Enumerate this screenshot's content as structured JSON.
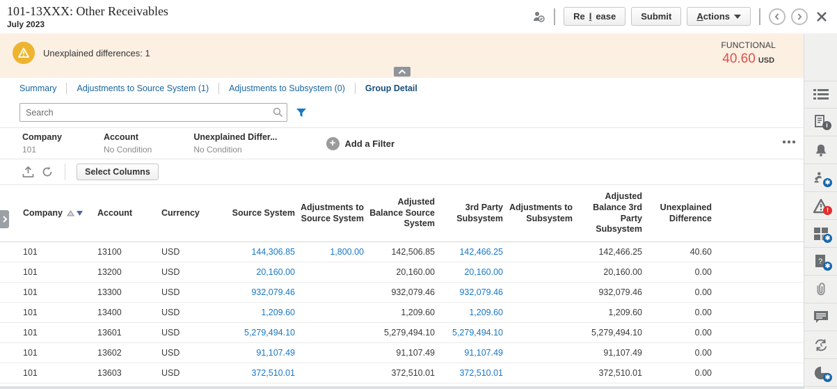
{
  "header": {
    "title": "101-13XXX: Other Receivables",
    "period": "July 2023",
    "release_label": "Release",
    "submit_label": "Submit",
    "actions_label": "Actions"
  },
  "banner": {
    "message": "Unexplained differences: 1",
    "functional_label": "FUNCTIONAL",
    "amount": "40.60",
    "currency": "USD"
  },
  "tabs": [
    {
      "label": "Summary"
    },
    {
      "label": "Adjustments to Source System (1)"
    },
    {
      "label": "Adjustments to Subsystem (0)"
    },
    {
      "label": "Group Detail"
    }
  ],
  "search": {
    "placeholder": "Search"
  },
  "filters": {
    "items": [
      {
        "name": "Company",
        "value": "101"
      },
      {
        "name": "Account",
        "value": "No Condition"
      },
      {
        "name": "Unexplained Differ...",
        "value": "No Condition"
      }
    ],
    "add_label": "Add a Filter"
  },
  "toolbar": {
    "select_columns_label": "Select Columns"
  },
  "table": {
    "headers": [
      "Company",
      "Account",
      "Currency",
      "Source System",
      "Adjustments to Source System",
      "Adjusted Balance Source System",
      "3rd Party Subsystem",
      "Adjustments to Subsystem",
      "Adjusted Balance 3rd Party Subsystem",
      "Unexplained Difference"
    ],
    "rows": [
      {
        "company": "101",
        "account": "13100",
        "currency": "USD",
        "source_system": "144,306.85",
        "adj_source_system": "1,800.00",
        "adj_bal_source": "142,506.85",
        "third_party": "142,466.25",
        "adj_subsystem": "",
        "adj_bal_third": "142,466.25",
        "unexplained": "40.60"
      },
      {
        "company": "101",
        "account": "13200",
        "currency": "USD",
        "source_system": "20,160.00",
        "adj_source_system": "",
        "adj_bal_source": "20,160.00",
        "third_party": "20,160.00",
        "adj_subsystem": "",
        "adj_bal_third": "20,160.00",
        "unexplained": "0.00"
      },
      {
        "company": "101",
        "account": "13300",
        "currency": "USD",
        "source_system": "932,079.46",
        "adj_source_system": "",
        "adj_bal_source": "932,079.46",
        "third_party": "932,079.46",
        "adj_subsystem": "",
        "adj_bal_third": "932,079.46",
        "unexplained": "0.00"
      },
      {
        "company": "101",
        "account": "13400",
        "currency": "USD",
        "source_system": "1,209.60",
        "adj_source_system": "",
        "adj_bal_source": "1,209.60",
        "third_party": "1,209.60",
        "adj_subsystem": "",
        "adj_bal_third": "1,209.60",
        "unexplained": "0.00"
      },
      {
        "company": "101",
        "account": "13601",
        "currency": "USD",
        "source_system": "5,279,494.10",
        "adj_source_system": "",
        "adj_bal_source": "5,279,494.10",
        "third_party": "5,279,494.10",
        "adj_subsystem": "",
        "adj_bal_third": "5,279,494.10",
        "unexplained": "0.00"
      },
      {
        "company": "101",
        "account": "13602",
        "currency": "USD",
        "source_system": "91,107.49",
        "adj_source_system": "",
        "adj_bal_source": "91,107.49",
        "third_party": "91,107.49",
        "adj_subsystem": "",
        "adj_bal_third": "91,107.49",
        "unexplained": "0.00"
      },
      {
        "company": "101",
        "account": "13603",
        "currency": "USD",
        "source_system": "372,510.01",
        "adj_source_system": "",
        "adj_bal_source": "372,510.01",
        "third_party": "372,510.01",
        "adj_subsystem": "",
        "adj_bal_third": "372,510.01",
        "unexplained": "0.00"
      }
    ]
  },
  "right_rail": {
    "icons": [
      "properties-list-icon",
      "instructions-icon",
      "alerts-bell-icon",
      "workflow-users-icon",
      "warnings-triangle-icon",
      "summary-cards-icon",
      "questionnaire-icon",
      "attachments-paperclip-icon",
      "comments-icon",
      "prior-reconciliations-icon",
      "time-pie-icon"
    ]
  },
  "colors": {
    "link_blue": "#1777c6",
    "warning_yellow": "#eeb430",
    "negative_red": "#e0514a",
    "banner_bg": "#fcf0e3"
  }
}
